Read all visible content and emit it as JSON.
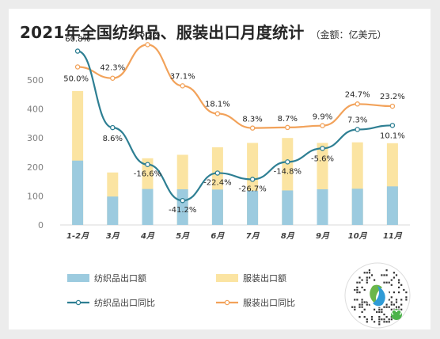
{
  "title": "2021年全国纺织品、服装出口月度统计",
  "unit": "（金额：亿美元）",
  "colors": {
    "textile_bar": "#9ccbdf",
    "apparel_bar": "#fbe4a2",
    "textile_line": "#2e7f93",
    "apparel_line": "#f2a25a",
    "axis_text": "#7f7f7f"
  },
  "chart_data": {
    "type": "bar",
    "categories": [
      "1-2月",
      "3月",
      "4月",
      "5月",
      "6月",
      "7月",
      "8月",
      "9月",
      "10月",
      "11月"
    ],
    "ylim": [
      0,
      500
    ],
    "yticks": [
      0,
      100,
      200,
      300,
      400,
      500
    ],
    "series": [
      {
        "name": "纺织品出口额",
        "values": [
          222,
          98,
          124,
          123,
          122,
          118,
          119,
          123,
          125,
          133
        ]
      },
      {
        "name": "服装出口额",
        "values": [
          462,
          181,
          230,
          242,
          268,
          283,
          300,
          283,
          285,
          282
        ]
      }
    ],
    "line_series": [
      {
        "name": "纺织品出口同比",
        "values": [
          60.8,
          8.6,
          -16.6,
          -41.2,
          -22.4,
          -26.7,
          -14.8,
          -5.6,
          7.3,
          10.1
        ],
        "labels": [
          "60.8%",
          "8.6%",
          "-16.6%",
          "-41.2%",
          "-22.4%",
          "-26.7%",
          "-14.8%",
          "-5.6%",
          "7.3%",
          "10.1%"
        ]
      },
      {
        "name": "服装出口同比",
        "values": [
          50.0,
          42.3,
          65.2,
          37.1,
          18.1,
          8.3,
          8.7,
          9.9,
          24.7,
          23.2
        ],
        "labels": [
          "50.0%",
          "42.3%",
          "65.2%",
          "37.1%",
          "18.1%",
          "8.3%",
          "8.7%",
          "9.9%",
          "24.7%",
          "23.2%"
        ]
      }
    ],
    "legend": [
      {
        "name": "纺织品出口额",
        "kind": "bar",
        "series": 0
      },
      {
        "name": "服装出口额",
        "kind": "bar",
        "series": 1
      },
      {
        "name": "纺织品出口同比",
        "kind": "line",
        "series": 0
      },
      {
        "name": "服装出口同比",
        "kind": "line",
        "series": 1
      }
    ],
    "legend_position": "bottom-left",
    "grid": false
  }
}
